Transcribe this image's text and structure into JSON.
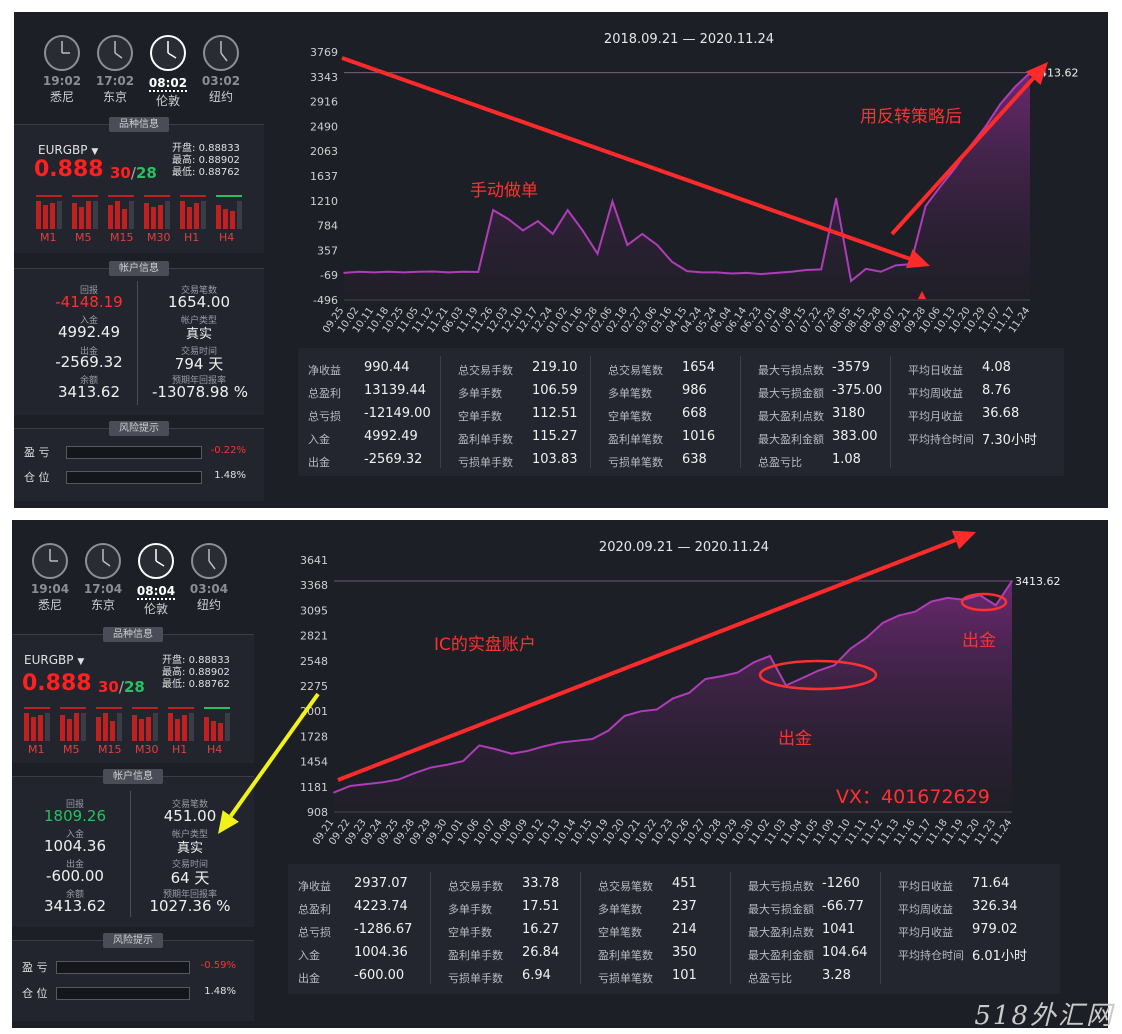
{
  "panels": [
    {
      "clocks": [
        {
          "time": "19:02",
          "city": "悉尼",
          "active": false
        },
        {
          "time": "17:02",
          "city": "东京",
          "active": false
        },
        {
          "time": "08:02",
          "city": "伦敦",
          "active": true
        },
        {
          "time": "03:02",
          "city": "纽约",
          "active": false
        }
      ],
      "symbol_section_title": "品种信息",
      "symbol": "EURGBP",
      "price": "0.888",
      "bid": "30",
      "slash": "/",
      "ask": "28",
      "open_label": "开盘:",
      "open": "0.88833",
      "high_label": "最高:",
      "high": "0.88902",
      "low_label": "最低:",
      "low": "0.88762",
      "timeframes": [
        "M1",
        "M5",
        "M15",
        "M30",
        "H1",
        "H4"
      ],
      "account_section_title": "帐户信息",
      "account": {
        "profit_label": "回报",
        "profit": "-4148.19",
        "profit_color": "red",
        "trades_label": "交易笔数",
        "trades": "1654.00",
        "deposit_label": "入金",
        "deposit": "4992.49",
        "acct_type_label": "帐户类型",
        "acct_type": "真实",
        "withdraw_label": "出金",
        "withdraw": "-2569.32",
        "trade_time_label": "交易时间",
        "trade_time": "794 天",
        "balance_label": "余额",
        "balance": "3413.62",
        "annual_label": "预期年回报率",
        "annual": "-13078.98 %"
      },
      "risk_section_title": "风险提示",
      "risk": [
        {
          "label": "盈 亏",
          "pct": "-0.22%",
          "color": "#ff3030"
        },
        {
          "label": "仓 位",
          "pct": "1.48%",
          "color": "#e0e0e0"
        }
      ],
      "chart_title": "2018.09.21 — 2020.11.24",
      "end_label": "3413.62",
      "annotations": [
        "手动做单",
        "用反转策略后"
      ],
      "stats": [
        [
          {
            "l": "净收益",
            "v": "990.44"
          },
          {
            "l": "总盈利",
            "v": "13139.44"
          },
          {
            "l": "总亏损",
            "v": "-12149.00"
          },
          {
            "l": "入金",
            "v": "4992.49"
          },
          {
            "l": "出金",
            "v": "-2569.32"
          }
        ],
        [
          {
            "l": "总交易手数",
            "v": "219.10"
          },
          {
            "l": "多单手数",
            "v": "106.59"
          },
          {
            "l": "空单手数",
            "v": "112.51"
          },
          {
            "l": "盈利单手数",
            "v": "115.27"
          },
          {
            "l": "亏损单手数",
            "v": "103.83"
          }
        ],
        [
          {
            "l": "总交易笔数",
            "v": "1654"
          },
          {
            "l": "多单笔数",
            "v": "986"
          },
          {
            "l": "空单笔数",
            "v": "668"
          },
          {
            "l": "盈利单笔数",
            "v": "1016"
          },
          {
            "l": "亏损单笔数",
            "v": "638"
          }
        ],
        [
          {
            "l": "最大亏损点数",
            "v": "-3579"
          },
          {
            "l": "最大亏损金额",
            "v": "-375.00"
          },
          {
            "l": "最大盈利点数",
            "v": "3180"
          },
          {
            "l": "最大盈利金额",
            "v": "383.00"
          },
          {
            "l": "总盈亏比",
            "v": "1.08"
          }
        ],
        [
          {
            "l": "平均日收益",
            "v": "4.08"
          },
          {
            "l": "平均周收益",
            "v": "8.76"
          },
          {
            "l": "平均月收益",
            "v": "36.68"
          },
          {
            "l": "平均持仓时间",
            "v": "7.30小时"
          }
        ]
      ]
    },
    {
      "clocks": [
        {
          "time": "19:04",
          "city": "悉尼",
          "active": false
        },
        {
          "time": "17:04",
          "city": "东京",
          "active": false
        },
        {
          "time": "08:04",
          "city": "伦敦",
          "active": true
        },
        {
          "time": "03:04",
          "city": "纽约",
          "active": false
        }
      ],
      "symbol_section_title": "品种信息",
      "symbol": "EURGBP",
      "price": "0.888",
      "bid": "30",
      "slash": "/",
      "ask": "28",
      "open_label": "开盘:",
      "open": "0.88833",
      "high_label": "最高:",
      "high": "0.88902",
      "low_label": "最低:",
      "low": "0.88762",
      "timeframes": [
        "M1",
        "M5",
        "M15",
        "M30",
        "H1",
        "H4"
      ],
      "account_section_title": "帐户信息",
      "account": {
        "profit_label": "回报",
        "profit": "1809.26",
        "profit_color": "green",
        "trades_label": "交易笔数",
        "trades": "451.00",
        "deposit_label": "入金",
        "deposit": "1004.36",
        "acct_type_label": "帐户类型",
        "acct_type": "真实",
        "withdraw_label": "出金",
        "withdraw": "-600.00",
        "trade_time_label": "交易时间",
        "trade_time": "64 天",
        "balance_label": "余额",
        "balance": "3413.62",
        "annual_label": "预期年回报率",
        "annual": "1027.36 %"
      },
      "risk_section_title": "风险提示",
      "risk": [
        {
          "label": "盈 亏",
          "pct": "-0.59%",
          "color": "#ff3030"
        },
        {
          "label": "仓 位",
          "pct": "1.48%",
          "color": "#e0e0e0"
        }
      ],
      "chart_title": "2020.09.21 — 2020.11.24",
      "end_label": "3413.62",
      "annotations": [
        "IC的实盘账户",
        "出金",
        "出金",
        "VX：401672629"
      ],
      "stats": [
        [
          {
            "l": "净收益",
            "v": "2937.07"
          },
          {
            "l": "总盈利",
            "v": "4223.74"
          },
          {
            "l": "总亏损",
            "v": "-1286.67"
          },
          {
            "l": "入金",
            "v": "1004.36"
          },
          {
            "l": "出金",
            "v": "-600.00"
          }
        ],
        [
          {
            "l": "总交易手数",
            "v": "33.78"
          },
          {
            "l": "多单手数",
            "v": "17.51"
          },
          {
            "l": "空单手数",
            "v": "16.27"
          },
          {
            "l": "盈利单手数",
            "v": "26.84"
          },
          {
            "l": "亏损单手数",
            "v": "6.94"
          }
        ],
        [
          {
            "l": "总交易笔数",
            "v": "451"
          },
          {
            "l": "多单笔数",
            "v": "237"
          },
          {
            "l": "空单笔数",
            "v": "214"
          },
          {
            "l": "盈利单笔数",
            "v": "350"
          },
          {
            "l": "亏损单笔数",
            "v": "101"
          }
        ],
        [
          {
            "l": "最大亏损点数",
            "v": "-1260"
          },
          {
            "l": "最大亏损金额",
            "v": "-66.77"
          },
          {
            "l": "最大盈利点数",
            "v": "1041"
          },
          {
            "l": "最大盈利金额",
            "v": "104.64"
          },
          {
            "l": "总盈亏比",
            "v": "3.28"
          }
        ],
        [
          {
            "l": "平均日收益",
            "v": "71.64"
          },
          {
            "l": "平均周收益",
            "v": "326.34"
          },
          {
            "l": "平均月收益",
            "v": "979.02"
          },
          {
            "l": "平均持仓时间",
            "v": "6.01小时"
          }
        ]
      ]
    }
  ],
  "watermark": "518外汇网",
  "chart_data": [
    {
      "type": "area",
      "title": "2018.09.21 — 2020.11.24",
      "xlabel": "",
      "ylabel": "",
      "yticks": [
        3769,
        3343,
        2916,
        2490,
        2063,
        1637,
        1210,
        784,
        357,
        -69,
        -496
      ],
      "ylim": [
        -496,
        3769
      ],
      "x": [
        "09.25",
        "10.02",
        "10.11",
        "10.18",
        "10.25",
        "11.05",
        "11.12",
        "11.21",
        "06.03",
        "11.19",
        "11.26",
        "12.03",
        "12.10",
        "12.17",
        "12.24",
        "01.02",
        "01.16",
        "01.28",
        "02.06",
        "02.18",
        "02.27",
        "03.06",
        "03.16",
        "04.15",
        "04.24",
        "05.24",
        "06.04",
        "06.14",
        "06.23",
        "07.01",
        "07.08",
        "07.15",
        "07.22",
        "07.29",
        "08.05",
        "08.15",
        "08.28",
        "09.07",
        "09.21",
        "09.28",
        "10.06",
        "10.13",
        "10.20",
        "10.29",
        "11.07",
        "11.17",
        "11.24"
      ],
      "series": [
        {
          "values": [
            -30,
            -10,
            -20,
            -10,
            -20,
            -10,
            -5,
            -20,
            -10,
            -15,
            1050,
            900,
            700,
            860,
            640,
            1050,
            700,
            300,
            1200,
            450,
            640,
            450,
            160,
            0,
            -20,
            -20,
            -40,
            -30,
            -50,
            -30,
            -10,
            20,
            30,
            1250,
            -170,
            40,
            -10,
            100,
            120,
            1120,
            1460,
            1780,
            2150,
            2480,
            2870,
            3170,
            3413.62
          ]
        }
      ],
      "last_label": "3413.62",
      "annotations": [
        "手动做单",
        "用反转策略后"
      ],
      "grid": false
    },
    {
      "type": "area",
      "title": "2020.09.21 — 2020.11.24",
      "xlabel": "",
      "ylabel": "",
      "yticks": [
        3641,
        3368,
        3095,
        2821,
        2548,
        2275,
        2001,
        1728,
        1454,
        1181,
        908
      ],
      "ylim": [
        908,
        3641
      ],
      "x": [
        "09.21",
        "09.22",
        "09.23",
        "09.24",
        "09.25",
        "09.28",
        "09.29",
        "09.30",
        "10.01",
        "10.06",
        "10.07",
        "10.08",
        "10.09",
        "10.12",
        "10.13",
        "10.14",
        "10.15",
        "10.19",
        "10.20",
        "10.21",
        "10.22",
        "10.23",
        "10.26",
        "10.27",
        "10.28",
        "10.29",
        "10.30",
        "11.02",
        "11.03",
        "11.04",
        "11.05",
        "11.09",
        "11.10",
        "11.11",
        "11.12",
        "11.13",
        "11.16",
        "11.17",
        "11.18",
        "11.19",
        "11.20",
        "11.23",
        "11.24"
      ],
      "series": [
        {
          "values": [
            1120,
            1190,
            1210,
            1230,
            1260,
            1330,
            1390,
            1420,
            1460,
            1630,
            1590,
            1540,
            1570,
            1620,
            1660,
            1680,
            1700,
            1790,
            1950,
            2000,
            2020,
            2140,
            2200,
            2350,
            2380,
            2420,
            2530,
            2600,
            2280,
            2360,
            2440,
            2500,
            2680,
            2800,
            2960,
            3040,
            3080,
            3190,
            3230,
            3210,
            3260,
            3150,
            3413.62
          ]
        }
      ],
      "last_label": "3413.62",
      "annotations": [
        "IC的实盘账户",
        "出金",
        "出金",
        "VX：401672629"
      ],
      "grid": false
    }
  ]
}
